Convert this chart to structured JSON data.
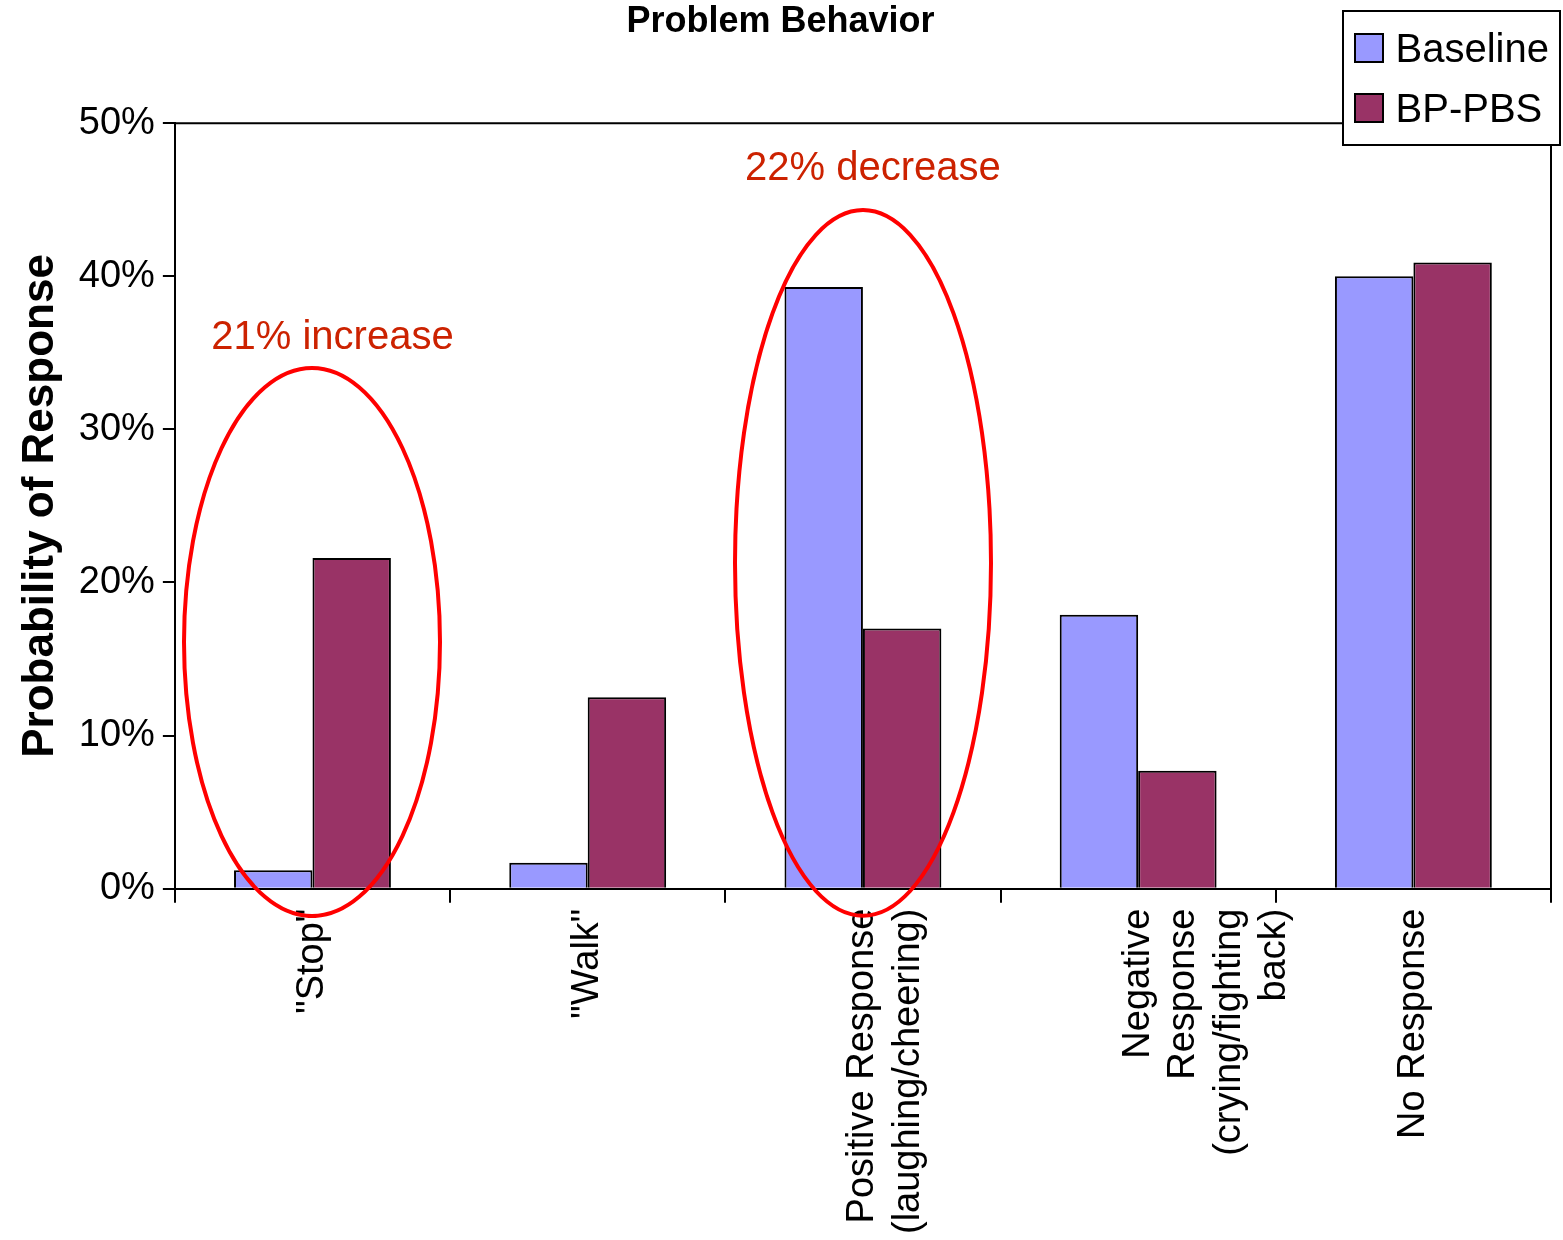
{
  "chart_data": {
    "type": "bar",
    "title": "Problem Behavior",
    "ylabel": "Probability of Response",
    "categories": [
      "\"Stop\"",
      "\"Walk\"",
      "Positive Response\n(laughing/cheering)",
      "Negative\nResponse\n(crying/fighting\nback)",
      "No Response"
    ],
    "series": [
      {
        "name": "Baseline",
        "color": "#9999ff",
        "values": [
          1.2,
          1.7,
          39.3,
          17.9,
          40.0
        ]
      },
      {
        "name": "BP-PBS",
        "color": "#993366",
        "values": [
          21.6,
          12.5,
          17.0,
          7.7,
          40.9
        ]
      }
    ],
    "ylim": [
      0,
      50
    ],
    "yticks": [
      {
        "value": 0,
        "label": "0%"
      },
      {
        "value": 10,
        "label": "10%"
      },
      {
        "value": 20,
        "label": "20%"
      },
      {
        "value": 30,
        "label": "30%"
      },
      {
        "value": 40,
        "label": "40%"
      },
      {
        "value": 50,
        "label": "50%"
      }
    ],
    "grid": false,
    "legend": "top right",
    "annotations": [
      "21% increase",
      "22% decrease"
    ]
  }
}
